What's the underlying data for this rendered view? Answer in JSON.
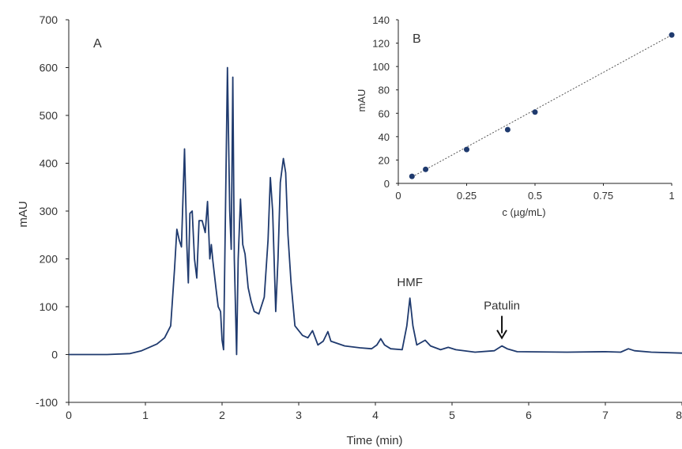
{
  "chart_data": [
    {
      "panel_label": "A",
      "type": "line",
      "xlabel": "Time (min)",
      "ylabel": "mAU",
      "xlim": [
        0,
        8
      ],
      "ylim": [
        -100,
        700
      ],
      "x_ticks": [
        "0",
        "1",
        "2",
        "3",
        "4",
        "5",
        "6",
        "7",
        "8"
      ],
      "y_ticks": [
        "-100",
        "0",
        "100",
        "200",
        "300",
        "400",
        "500",
        "600",
        "700"
      ],
      "grid": false,
      "line_color": "#1f3a6e",
      "series": [
        {
          "points": [
            [
              0,
              0
            ],
            [
              0.5,
              0
            ],
            [
              0.8,
              2
            ],
            [
              0.95,
              8
            ],
            [
              1.05,
              15
            ],
            [
              1.15,
              22
            ],
            [
              1.25,
              35
            ],
            [
              1.33,
              60
            ],
            [
              1.38,
              180
            ],
            [
              1.41,
              262
            ],
            [
              1.44,
              240
            ],
            [
              1.47,
              225
            ],
            [
              1.51,
              430
            ],
            [
              1.54,
              230
            ],
            [
              1.56,
              150
            ],
            [
              1.58,
              295
            ],
            [
              1.61,
              300
            ],
            [
              1.64,
              200
            ],
            [
              1.67,
              160
            ],
            [
              1.7,
              280
            ],
            [
              1.74,
              280
            ],
            [
              1.78,
              255
            ],
            [
              1.81,
              320
            ],
            [
              1.84,
              200
            ],
            [
              1.86,
              230
            ],
            [
              1.88,
              195
            ],
            [
              1.92,
              140
            ],
            [
              1.95,
              100
            ],
            [
              1.98,
              90
            ],
            [
              2.0,
              30
            ],
            [
              2.02,
              10
            ],
            [
              2.04,
              250
            ],
            [
              2.07,
              600
            ],
            [
              2.1,
              300
            ],
            [
              2.12,
              220
            ],
            [
              2.14,
              580
            ],
            [
              2.16,
              200
            ],
            [
              2.19,
              0
            ],
            [
              2.21,
              200
            ],
            [
              2.24,
              325
            ],
            [
              2.27,
              230
            ],
            [
              2.3,
              210
            ],
            [
              2.34,
              140
            ],
            [
              2.38,
              110
            ],
            [
              2.42,
              90
            ],
            [
              2.48,
              85
            ],
            [
              2.55,
              120
            ],
            [
              2.6,
              240
            ],
            [
              2.63,
              370
            ],
            [
              2.66,
              300
            ],
            [
              2.7,
              90
            ],
            [
              2.73,
              200
            ],
            [
              2.76,
              360
            ],
            [
              2.8,
              410
            ],
            [
              2.83,
              380
            ],
            [
              2.86,
              250
            ],
            [
              2.9,
              150
            ],
            [
              2.95,
              60
            ],
            [
              3.05,
              40
            ],
            [
              3.12,
              35
            ],
            [
              3.18,
              50
            ],
            [
              3.25,
              20
            ],
            [
              3.32,
              28
            ],
            [
              3.38,
              48
            ],
            [
              3.42,
              28
            ],
            [
              3.6,
              18
            ],
            [
              3.8,
              14
            ],
            [
              3.95,
              12
            ],
            [
              4.02,
              20
            ],
            [
              4.07,
              33
            ],
            [
              4.12,
              20
            ],
            [
              4.2,
              12
            ],
            [
              4.35,
              10
            ],
            [
              4.41,
              60
            ],
            [
              4.45,
              118
            ],
            [
              4.49,
              60
            ],
            [
              4.54,
              20
            ],
            [
              4.65,
              30
            ],
            [
              4.72,
              18
            ],
            [
              4.85,
              10
            ],
            [
              4.95,
              15
            ],
            [
              5.05,
              10
            ],
            [
              5.3,
              5
            ],
            [
              5.55,
              8
            ],
            [
              5.65,
              18
            ],
            [
              5.72,
              12
            ],
            [
              5.85,
              6
            ],
            [
              6.5,
              5
            ],
            [
              7.0,
              6
            ],
            [
              7.2,
              5
            ],
            [
              7.3,
              12
            ],
            [
              7.38,
              8
            ],
            [
              7.6,
              5
            ],
            [
              8.0,
              3
            ]
          ]
        }
      ],
      "annotations": [
        {
          "text": "HMF",
          "x": 4.45,
          "y": 118
        },
        {
          "text": "Patulin",
          "x": 5.65,
          "y": 18,
          "arrow": true
        }
      ]
    },
    {
      "panel_label": "B",
      "type": "scatter",
      "xlabel": "c (µg/mL)",
      "ylabel": "mAU",
      "xlim": [
        0,
        1
      ],
      "ylim": [
        0,
        140
      ],
      "x_ticks": [
        "0",
        "0.25",
        "0.5",
        "0.75",
        "1"
      ],
      "y_ticks": [
        "0",
        "20",
        "40",
        "60",
        "80",
        "100",
        "120",
        "140"
      ],
      "grid": false,
      "marker_color": "#1f3a6e",
      "points": [
        {
          "x": 0.05,
          "y": 6
        },
        {
          "x": 0.1,
          "y": 12
        },
        {
          "x": 0.25,
          "y": 29
        },
        {
          "x": 0.4,
          "y": 46
        },
        {
          "x": 0.5,
          "y": 61
        },
        {
          "x": 1.0,
          "y": 127
        }
      ],
      "trendline": {
        "type": "linear",
        "from": [
          0.05,
          5.5
        ],
        "to": [
          1.0,
          127
        ]
      }
    }
  ]
}
